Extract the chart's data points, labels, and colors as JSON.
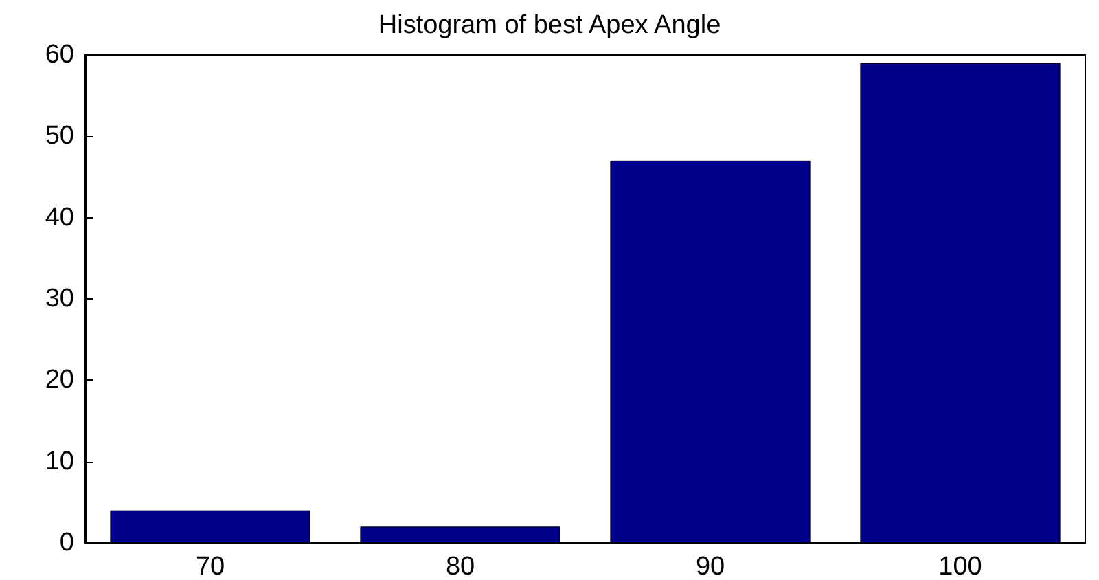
{
  "chart_data": {
    "type": "bar",
    "title": "Histogram of best Apex Angle",
    "categories": [
      "70",
      "80",
      "90",
      "100"
    ],
    "values": [
      4,
      2,
      47,
      59
    ],
    "color": "#00008b",
    "ylim": [
      0,
      60
    ],
    "yticks": [
      0,
      10,
      20,
      30,
      40,
      50,
      60
    ],
    "grid": false
  }
}
